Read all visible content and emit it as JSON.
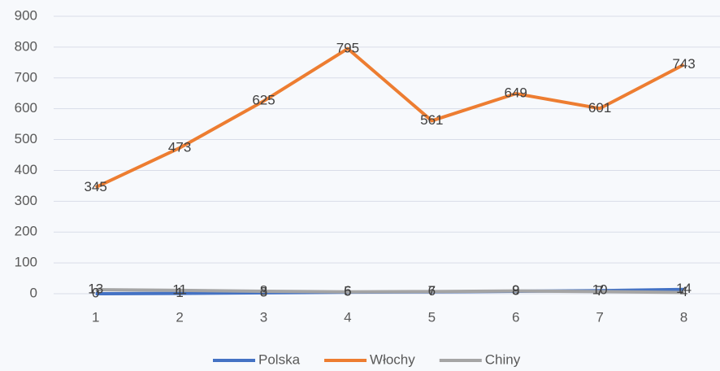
{
  "chart_data": {
    "type": "line",
    "categories": [
      "1",
      "2",
      "3",
      "4",
      "5",
      "6",
      "7",
      "8"
    ],
    "series": [
      {
        "name": "Polska",
        "color": "#4472c4",
        "values": [
          0,
          1,
          3,
          5,
          6,
          8,
          10,
          14
        ]
      },
      {
        "name": "Włochy",
        "color": "#ed7d31",
        "values": [
          345,
          473,
          625,
          795,
          561,
          649,
          601,
          743
        ]
      },
      {
        "name": "Chiny",
        "color": "#a5a5a5",
        "values": [
          13,
          11,
          8,
          6,
          7,
          9,
          7,
          4
        ]
      }
    ],
    "ylim": [
      0,
      900
    ],
    "yticks": [
      0,
      100,
      200,
      300,
      400,
      500,
      600,
      700,
      800,
      900
    ],
    "grid": true,
    "legend": "bottom",
    "data_labels": true
  }
}
